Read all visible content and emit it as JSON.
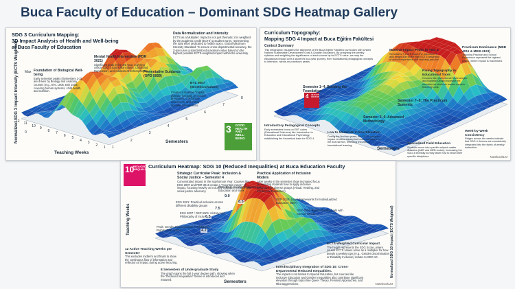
{
  "header": {
    "title": "Buca Faculty of Education – Dominant SDG Heatmap Gallery"
  },
  "panels": [
    {
      "title": [
        "SDG 3 Curriculum Mapping:",
        "3D Impact Analysis of Health and Well-being",
        "at Buca Faculty of Education"
      ],
      "notes": [
        {
          "heading": "Data Normalization and Intensity",
          "body": "ECTS as a Multiplier: Impact is not just thematic; it is weighted by the academic credit (ECTS) a student earns, representing the total effort dedicated to health topics. Global Maximum Intensity Standard: To ensure cross-departmental accuracy, the Z-axis uses a standardized maximum value based on the highest possible ECTS-weighted impact within the university."
        },
        {
          "heading": "Mental Health Intervention (PDR 3021)",
          "body": "Significant peak in the 3rd year, covering critical SDG 3 topics like Autism, Childhood Depression, and Adolescent Schizophrenia."
        },
        {
          "heading": "Foundation of Biological Well-being",
          "body": "Early semester peaks (Semesters 1-3) are driven by Biology and Anatomy courses (e.g., BYL 1005, BIO 1003) covering human systems, child health, and nutrition."
        },
        {
          "heading": "Preventative Guidance (OPD 5009)"
        },
        {
          "heading": "BYL 5007 (Bioethics/Values)"
        },
        {
          "body": "Creates a massive \"impact plateau\" focusing on suicide prevention, child abuse awareness, and eating disorder interventions."
        }
      ],
      "y_label": "Normalized SDG 3 Impact Intensity (ECTS Weighted)",
      "y_ticks": [
        "Max",
        "0"
      ],
      "x_label": "Teaching Weeks",
      "x_ticks": [
        "12",
        "11",
        "10",
        "9",
        "8",
        "7",
        "6",
        "5",
        "4",
        "3",
        "2",
        "1"
      ],
      "z_label": "Semesters",
      "z_ticks": [
        "1",
        "2",
        "3",
        "4",
        "5",
        "6",
        "7",
        "8"
      ],
      "badge": {
        "number": "3",
        "label": "GOOD HEALTH AND WELL-BEING"
      }
    },
    {
      "title": [
        "Curriculum Topography:",
        "Mapping SDG 4 Impact at Buca Eğitim Fakültesi"
      ],
      "notes": [
        {
          "heading": "Context Summary",
          "body": "This infographic visualizes the alignment of the Buca Eğitim Fakültesi curriculum with United Nations Sustainable Development Goal 4 (Quality Education). By analyzing the weekly syllabus and weighting the significance of each course by its ECTS value, we map the educational impact over a student's four-year journey, from foundational pedagogical concepts to intensive, hands-on practicum peaks."
        },
        {
          "heading": "Massive Impact Peaks in Year 4",
          "body": "Semesters 7 and 8 reach the maximum Z-axis height due to the high ECTS weighting of school experience and teaching practice."
        },
        {
          "heading": "Practicum Dominance (MEB 4011 & MEB 4123)",
          "body": "Teaching Practice and School Experience represent the highest peaks, where impact is maximized."
        },
        {
          "heading": "Rising Topography in Educational Tools",
          "body": "Courses like Instructional Technologies and Material Design increase the elevation as students master modern teaching tools."
        },
        {
          "heading": "Semester 1–4: Building the Foundation"
        },
        {
          "heading": "Semester 7–8: The Practicum Summits"
        },
        {
          "heading": "Semester 5–6: Advanced Methodology"
        },
        {
          "heading": "Introductory Pedagogical Concepts",
          "body": "Early semesters focus on EBT codes (Educational Sciences) like Introduction to Education and Educational Psychology, establishing the theoretical base for SDG 4."
        },
        {
          "heading": "Low to Moderate Z-Axis Elevation",
          "body": "During the first two years, the ECTS-weighted impact remains steady but lower compared to the final stretch, reflecting theoretical foundational learning."
        },
        {
          "heading": "Specialized Field Education",
          "body": "Students move into specific subject-matter didactics (ADE and MEB codes), increasing the SDG 4 intensity as they learn how to teach their specific disciplines."
        },
        {
          "heading": "Week-by-Week Consistency",
          "body": "Ridges across the weeks indicate that SDG 4 themes are consistently integrated into the fabric of weekly instruction."
        }
      ],
      "z_label": "Semesters",
      "badge": {
        "number": "4",
        "label": "QUALITY EDUCATION"
      },
      "watermark": "NotebookLM"
    },
    {
      "title": [
        "Curriculum Heatmap: SDG 10 (Reduced Inequalities) at Buca Education Faculty"
      ],
      "notes": [
        {
          "heading": "Strategic Curricular Peak: Inclusion & Social Justice – Semester 4",
          "body": "Concentrated Impact in the Sophomore Year. Courses like EGS 2007 and PDR 3016 create a \"mountain range\" of impact, focusing heavily on inclusive education models and social justice advocacy."
        },
        {
          "heading": "Practical Application of Inclusion Models",
          "body": "Later weeks in the semester show increased focus on enabling students how to apply inclusive strategies for diverse groups (Visual, Hearing, and Intellectual Disabilities)."
        },
        {
          "body": "PDR 3016: Gender Inequalities in Education and Work"
        },
        {
          "body": "EGS 2021: Practical inclusion across different disability groups"
        },
        {
          "body": "EGS 2007 / OEP 5001: History and Philosophy of Inclusion"
        },
        {
          "body": "Peak: Gender Discrimination in Children's Rights (DKE 1003)"
        },
        {
          "body": "OEP 2028: Legal Frameworks for Individualized Education (BEP)"
        },
        {
          "body": "OEP 4004: Rights of Individuals with Special Needs"
        },
        {
          "heading": "12 Active Teaching Weeks per Semester",
          "body": "This excludes midterm and finals to show the continuous flow of information and reflection of impact during active lecturing."
        },
        {
          "heading": "8 Semesters of Undergraduate Study",
          "body": "The graph spans the full 4-year degree path, showing when the \"Reduced Inequalities\" theme is introduced and matured."
        },
        {
          "heading": "Interdisciplinary Integration of SDG 10: Cross-Departmental Reduced Inequalities.",
          "body": "The impact is not limited to Special Education, but courses like Inclusive Education and Gender Inequalities also contribute significant elevation through topics like Queer Theory, Feminist Approaches, and Microaggressions."
        },
        {
          "heading": "ECTS-Weighted Curricular Impact.",
          "body": "The height represents the SDG Score, where course ECTS values serve as a multiplier for how deeply a weekly topic (e.g., Gender Discrimination or Disability Inclusion) relates to SDG 10."
        }
      ],
      "peak_labels": [
        "9.0",
        "8.5",
        "7.5",
        "6.5",
        "4.2"
      ],
      "y_label": "Teaching Weeks",
      "y2_label": "Normalized SDG 10 Impact (ECTS Weighted)",
      "x_label": "Semesters",
      "badge": {
        "number": "10",
        "label": "REDUCED INEQUALITIES"
      },
      "watermark": "NotebookLM"
    }
  ]
}
